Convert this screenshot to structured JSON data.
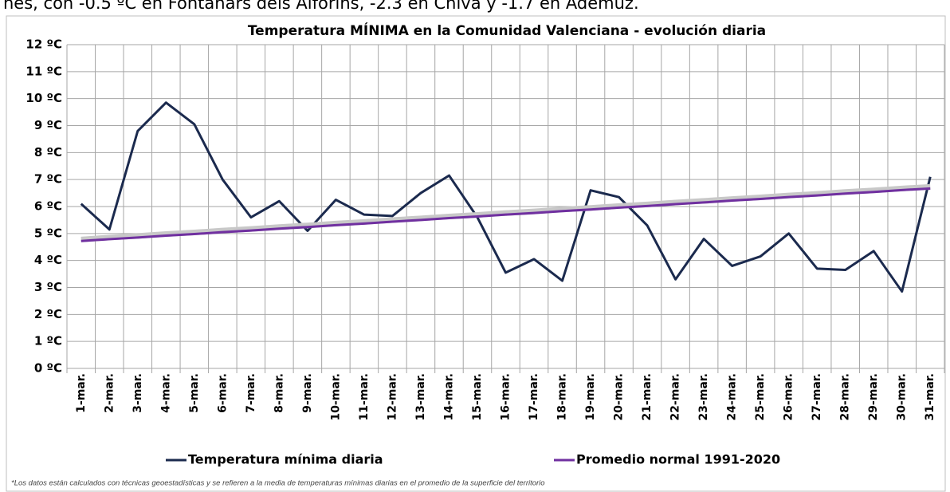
{
  "top_text": "nes, con -0.5 ºC en Fontanars dels Alforins, -2.3 en Chiva y -1.7 en Ademuz.",
  "chart_data": {
    "type": "line",
    "title": "Temperatura MÍNIMA en la Comunidad Valenciana - evolución diaria",
    "footnote": "*Los datos están calculados con técnicas geoestadísticas y se refieren a la media de temperaturas mínimas diarias en el promedio de la superficie del territorio",
    "categories": [
      "1-mar.",
      "2-mar.",
      "3-mar.",
      "4-mar.",
      "5-mar.",
      "6-mar.",
      "7-mar.",
      "8-mar.",
      "9-mar.",
      "10-mar.",
      "11-mar.",
      "12-mar.",
      "13-mar.",
      "14-mar.",
      "15-mar.",
      "16-mar.",
      "17-mar.",
      "18-mar.",
      "19-mar.",
      "20-mar.",
      "21-mar.",
      "22-mar.",
      "23-mar.",
      "24-mar.",
      "25-mar.",
      "26-mar.",
      "27-mar.",
      "28-mar.",
      "29-mar.",
      "30-mar.",
      "31-mar."
    ],
    "series": [
      {
        "name": "Temperatura mínima diaria",
        "color": "#1b2a4e",
        "values": [
          6.1,
          5.15,
          8.8,
          9.85,
          9.05,
          7.0,
          5.6,
          6.2,
          5.1,
          6.25,
          5.7,
          5.65,
          6.5,
          7.15,
          5.6,
          3.55,
          4.05,
          3.25,
          6.6,
          6.35,
          5.3,
          3.3,
          4.8,
          3.8,
          4.15,
          5.0,
          3.7,
          3.65,
          4.35,
          2.85,
          7.1
        ]
      },
      {
        "name": "Promedio normal 1991-2020",
        "color": "#7030a0",
        "values": [
          4.72,
          4.79,
          4.85,
          4.92,
          4.98,
          5.05,
          5.11,
          5.18,
          5.24,
          5.31,
          5.37,
          5.44,
          5.5,
          5.57,
          5.63,
          5.7,
          5.76,
          5.83,
          5.89,
          5.96,
          6.02,
          6.09,
          6.15,
          6.22,
          6.28,
          6.35,
          6.41,
          6.48,
          6.54,
          6.61,
          6.67
        ]
      }
    ],
    "ylim": [
      0,
      12
    ],
    "yticks": [
      {
        "value": 0,
        "label": "0 ºC"
      },
      {
        "value": 1,
        "label": "1 ºC"
      },
      {
        "value": 2,
        "label": "2 ºC"
      },
      {
        "value": 3,
        "label": "3 ºC"
      },
      {
        "value": 4,
        "label": "4 ºC"
      },
      {
        "value": 5,
        "label": "5 ºC"
      },
      {
        "value": 6,
        "label": "6 ºC"
      },
      {
        "value": 7,
        "label": "7 ºC"
      },
      {
        "value": 8,
        "label": "8 ºC"
      },
      {
        "value": 9,
        "label": "9 ºC"
      },
      {
        "value": 10,
        "label": "10 ºC"
      },
      {
        "value": 11,
        "label": "11 ºC"
      },
      {
        "value": 12,
        "label": "12 ºC"
      }
    ],
    "grid": true,
    "legend": "bottom"
  }
}
